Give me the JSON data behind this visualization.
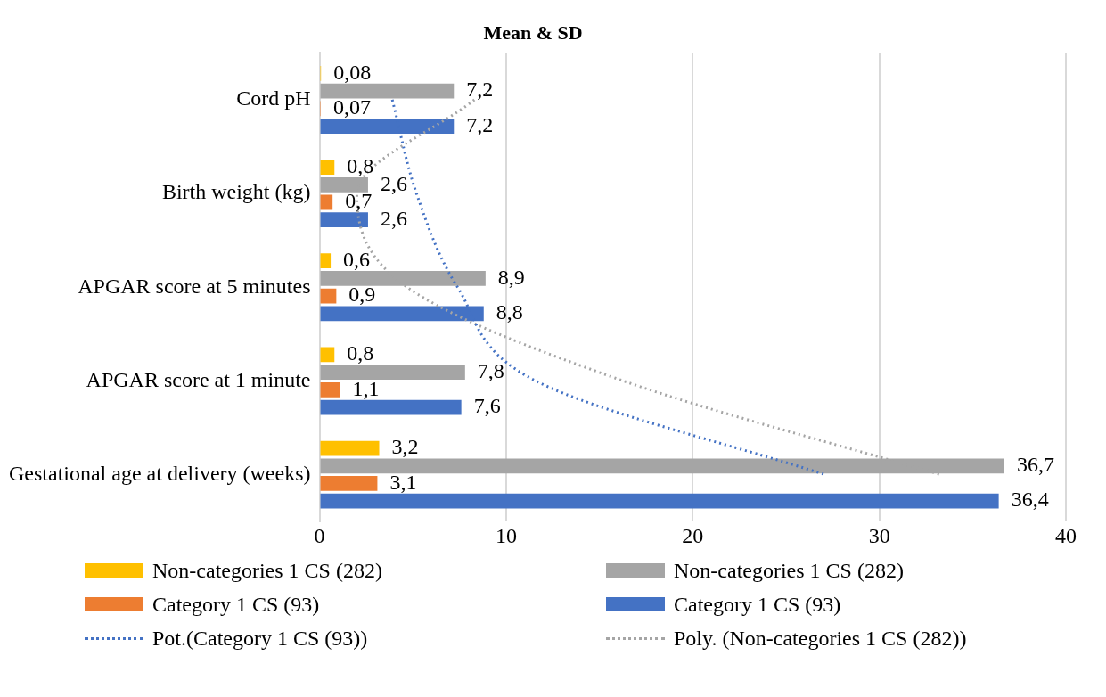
{
  "chart_data": {
    "type": "bar",
    "orientation": "horizontal",
    "title": "Mean & SD",
    "categories": [
      "Cord pH",
      "Birth weight (kg)",
      "APGAR score at 5 minutes",
      "APGAR score at 1 minute",
      "Gestational age at delivery (weeks)"
    ],
    "series": [
      {
        "name": "Non-categories 1 CS (282)",
        "color": "#ffc000",
        "values": [
          0.08,
          0.8,
          0.6,
          0.8,
          3.2
        ],
        "value_labels": [
          "0,08",
          "0,8",
          "0,6",
          "0,8",
          "3,2"
        ]
      },
      {
        "name": "Non-categories 1 CS (282)",
        "color": "#a5a5a5",
        "values": [
          7.2,
          2.6,
          8.9,
          7.8,
          36.7
        ],
        "value_labels": [
          "7,2",
          "2,6",
          "8,9",
          "7,8",
          "36,7"
        ]
      },
      {
        "name": "Category 1 CS (93)",
        "color": "#ed7d31",
        "values": [
          0.07,
          0.7,
          0.9,
          1.1,
          3.1
        ],
        "value_labels": [
          "0,07",
          "0,7",
          "0,9",
          "1,1",
          "3,1"
        ]
      },
      {
        "name": "Category 1 CS (93)",
        "color": "#4472c4",
        "values": [
          7.2,
          2.6,
          8.8,
          7.6,
          36.4
        ],
        "value_labels": [
          "7,2",
          "2,6",
          "8,8",
          "7,6",
          "36,4"
        ]
      },
      {
        "name": "Pot.(Category 1 CS (93))",
        "type": "line",
        "line_style": "dotted",
        "color": "#4472c4",
        "values": [
          3.9,
          5.2,
          7.4,
          11.6,
          27.1
        ]
      },
      {
        "name": "Poly. (Non-categories 1 CS (282))",
        "type": "line",
        "line_style": "dotted",
        "color": "#a5a5a5",
        "values": [
          8.3,
          2.0,
          4.7,
          16.3,
          33.3
        ]
      }
    ],
    "xlim": [
      0,
      40
    ],
    "xticks": [
      0,
      10,
      20,
      30,
      40
    ],
    "grid": "x",
    "legend": "bottom",
    "marker": "none"
  }
}
